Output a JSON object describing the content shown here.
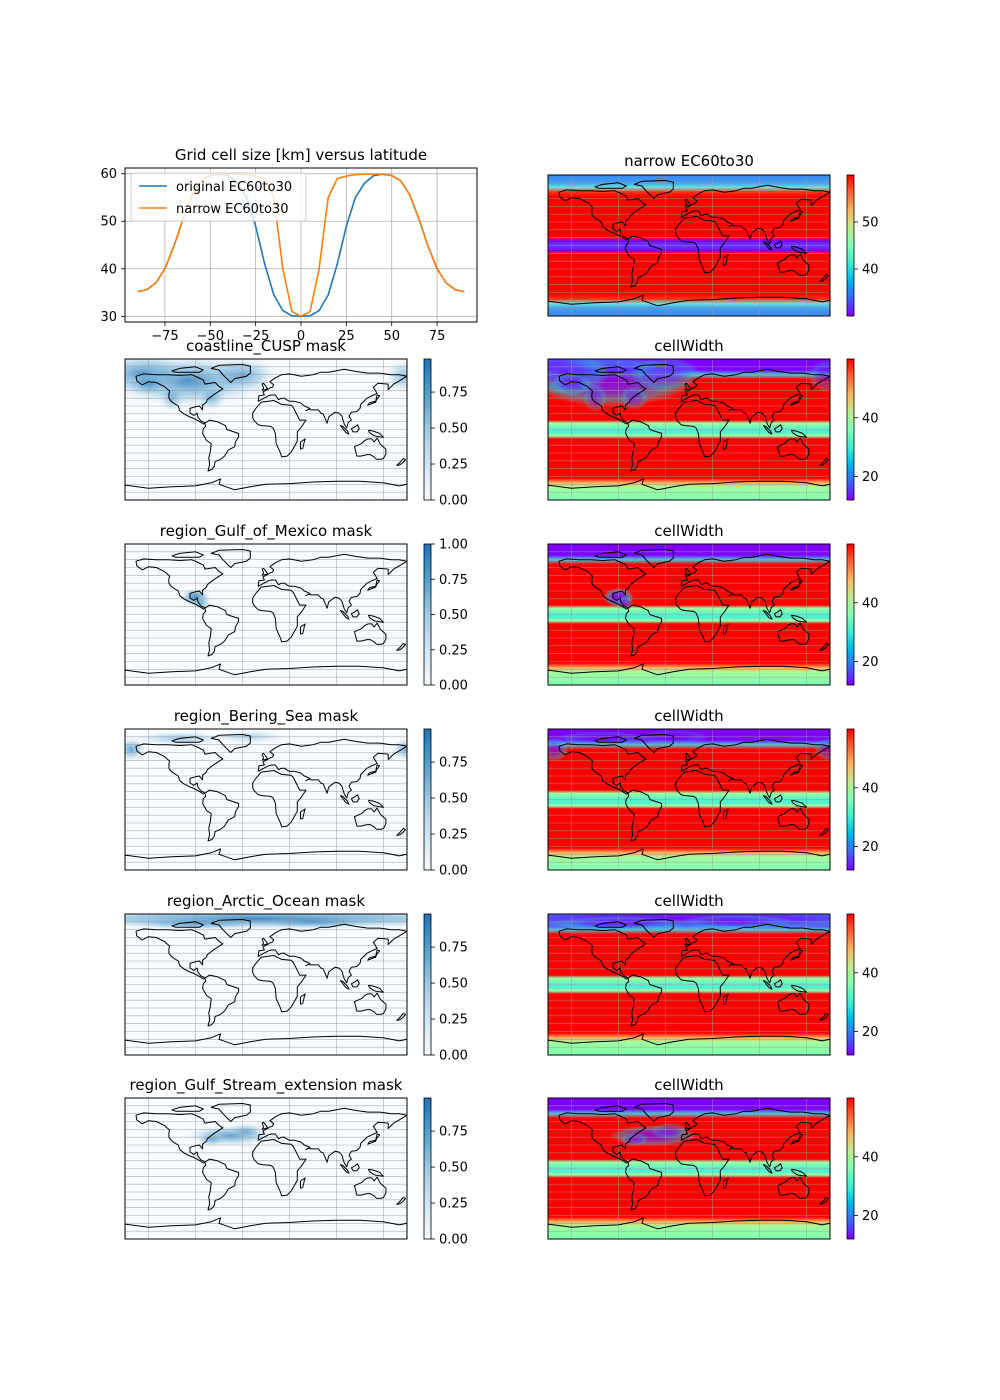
{
  "colors": {
    "original_line": "#1f77b4",
    "narrow_line": "#ff7f0e",
    "grid": "#b0b0b0",
    "mask_cmap": [
      "#f7fbff",
      "#deebf7",
      "#c6dbef",
      "#9ecae1",
      "#6baed6",
      "#4292c6",
      "#2171b5"
    ],
    "rainbow_cmap": [
      "#8000ff",
      "#4062fa",
      "#00b5eb",
      "#40ecd4",
      "#80ffb4",
      "#c0eb8d",
      "#ffb462",
      "#ff6232",
      "#ff0000"
    ]
  },
  "chart_data": [
    {
      "id": "lineplot",
      "type": "line",
      "title": "Grid cell size [km] versus latitude",
      "xlabel": "",
      "ylabel": "",
      "xlim": [
        -97,
        97
      ],
      "ylim": [
        28.8,
        61.2
      ],
      "xticks": [
        -75,
        -50,
        -25,
        0,
        25,
        50,
        75
      ],
      "xtick_labels": [
        "−75",
        "−50",
        "−25",
        "0",
        "25",
        "50",
        "75"
      ],
      "yticks": [
        30,
        40,
        50,
        60
      ],
      "ytick_labels": [
        "30",
        "40",
        "50",
        "60"
      ],
      "grid": true,
      "legend": {
        "position": "upper-left",
        "entries": [
          "original EC60to30",
          "narrow EC60to30"
        ]
      },
      "series": [
        {
          "name": "original EC60to30",
          "color_key": "original_line",
          "x": [
            -90,
            -85,
            -80,
            -75,
            -70,
            -65,
            -60,
            -55,
            -50,
            -45,
            -40,
            -35,
            -30,
            -25,
            -20,
            -15,
            -10,
            -5,
            0,
            5,
            10,
            15,
            20,
            25,
            30,
            35,
            40,
            45,
            50,
            55,
            60,
            65,
            70,
            75,
            80,
            85,
            90
          ],
          "y": [
            35.2,
            35.6,
            37.0,
            40.0,
            44.8,
            50.5,
            55.5,
            58.5,
            59.6,
            59.9,
            59.6,
            58.0,
            55.0,
            49.0,
            41.0,
            34.5,
            31.2,
            30.1,
            30.0,
            30.1,
            31.2,
            34.5,
            41.0,
            49.0,
            55.0,
            58.0,
            59.6,
            59.9,
            59.6,
            58.5,
            55.5,
            50.5,
            44.8,
            40.0,
            37.0,
            35.6,
            35.2
          ]
        },
        {
          "name": "narrow EC60to30",
          "color_key": "narrow_line",
          "x": [
            -90,
            -85,
            -80,
            -75,
            -70,
            -65,
            -60,
            -55,
            -50,
            -45,
            -40,
            -35,
            -30,
            -25,
            -20,
            -15,
            -10,
            -5,
            0,
            5,
            10,
            15,
            20,
            25,
            30,
            35,
            40,
            45,
            50,
            55,
            60,
            65,
            70,
            75,
            80,
            85,
            90
          ],
          "y": [
            35.2,
            35.6,
            37.0,
            40.0,
            44.8,
            50.5,
            55.5,
            58.5,
            59.6,
            59.9,
            59.9,
            59.9,
            59.8,
            59.5,
            59.0,
            55.0,
            40.0,
            31.0,
            30.0,
            31.0,
            40.0,
            55.0,
            59.0,
            59.5,
            59.8,
            59.9,
            59.9,
            59.9,
            59.6,
            58.5,
            55.5,
            50.5,
            44.8,
            40.0,
            37.0,
            35.6,
            35.2
          ]
        }
      ]
    },
    {
      "id": "narrow-map",
      "type": "heatmap",
      "title": "narrow EC60to30",
      "cmap": "rainbow",
      "cbar_ticks": [
        40,
        50
      ],
      "cbar_tick_labels": [
        "40",
        "50"
      ],
      "cbar_range": [
        30,
        60
      ],
      "lat_profile": "narrow"
    },
    {
      "id": "mask-coastline",
      "type": "heatmap",
      "title": "coastline_CUSP mask",
      "cmap": "mask",
      "cbar_ticks": [
        0.0,
        0.25,
        0.5,
        0.75
      ],
      "cbar_tick_labels": [
        "0.00",
        "0.25",
        "0.50",
        "0.75"
      ],
      "cbar_range": [
        0,
        0.98
      ],
      "mask_region": "coastline"
    },
    {
      "id": "cw-coastline",
      "type": "heatmap",
      "title": "cellWidth",
      "cmap": "rainbow",
      "cbar_ticks": [
        20,
        40
      ],
      "cbar_tick_labels": [
        "20",
        "40"
      ],
      "cbar_range": [
        12,
        60
      ],
      "mask_region": "coastline"
    },
    {
      "id": "mask-gulf-mexico",
      "type": "heatmap",
      "title": "region_Gulf_of_Mexico mask",
      "cmap": "mask",
      "cbar_ticks": [
        0.0,
        0.25,
        0.5,
        0.75,
        1.0
      ],
      "cbar_tick_labels": [
        "0.00",
        "0.25",
        "0.50",
        "0.75",
        "1.00"
      ],
      "cbar_range": [
        0,
        1.0
      ],
      "mask_region": "gulf_mexico"
    },
    {
      "id": "cw-gulf-mexico",
      "type": "heatmap",
      "title": "cellWidth",
      "cmap": "rainbow",
      "cbar_ticks": [
        20,
        40
      ],
      "cbar_tick_labels": [
        "20",
        "40"
      ],
      "cbar_range": [
        12,
        60
      ],
      "mask_region": "gulf_mexico"
    },
    {
      "id": "mask-bering",
      "type": "heatmap",
      "title": "region_Bering_Sea mask",
      "cmap": "mask",
      "cbar_ticks": [
        0.0,
        0.25,
        0.5,
        0.75
      ],
      "cbar_tick_labels": [
        "0.00",
        "0.25",
        "0.50",
        "0.75"
      ],
      "cbar_range": [
        0,
        0.98
      ],
      "mask_region": "bering"
    },
    {
      "id": "cw-bering",
      "type": "heatmap",
      "title": "cellWidth",
      "cmap": "rainbow",
      "cbar_ticks": [
        20,
        40
      ],
      "cbar_tick_labels": [
        "20",
        "40"
      ],
      "cbar_range": [
        12,
        60
      ],
      "mask_region": "bering"
    },
    {
      "id": "mask-arctic",
      "type": "heatmap",
      "title": "region_Arctic_Ocean mask",
      "cmap": "mask",
      "cbar_ticks": [
        0.0,
        0.25,
        0.5,
        0.75
      ],
      "cbar_tick_labels": [
        "0.00",
        "0.25",
        "0.50",
        "0.75"
      ],
      "cbar_range": [
        0,
        0.98
      ],
      "mask_region": "arctic"
    },
    {
      "id": "cw-arctic",
      "type": "heatmap",
      "title": "cellWidth",
      "cmap": "rainbow",
      "cbar_ticks": [
        20,
        40
      ],
      "cbar_tick_labels": [
        "20",
        "40"
      ],
      "cbar_range": [
        12,
        60
      ],
      "mask_region": "arctic"
    },
    {
      "id": "mask-gulf-stream",
      "type": "heatmap",
      "title": "region_Gulf_Stream_extension mask",
      "cmap": "mask",
      "cbar_ticks": [
        0.0,
        0.25,
        0.5,
        0.75
      ],
      "cbar_tick_labels": [
        "0.00",
        "0.25",
        "0.50",
        "0.75"
      ],
      "cbar_range": [
        0,
        0.98
      ],
      "mask_region": "gulf_stream"
    },
    {
      "id": "cw-gulf-stream",
      "type": "heatmap",
      "title": "cellWidth",
      "cmap": "rainbow",
      "cbar_ticks": [
        20,
        40
      ],
      "cbar_tick_labels": [
        "20",
        "40"
      ],
      "cbar_range": [
        12,
        60
      ],
      "mask_region": "gulf_stream"
    }
  ]
}
